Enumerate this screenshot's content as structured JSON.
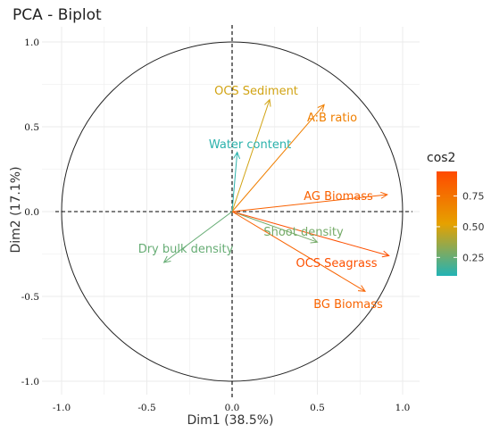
{
  "chart_data": {
    "type": "scatter",
    "subtype": "pca-variable-biplot",
    "title": "PCA - Biplot",
    "xlabel": "Dim1 (38.5%)",
    "ylabel": "Dim2 (17.1%)",
    "xlim": [
      -1.05,
      1.05
    ],
    "ylim": [
      -1.05,
      1.05
    ],
    "x_ticks": [
      -1.0,
      -0.5,
      0.0,
      0.5,
      1.0
    ],
    "x_tick_labels": [
      "-1.0",
      "-0.5",
      "0.0",
      "0.5",
      "1.0"
    ],
    "y_ticks": [
      -1.0,
      -0.5,
      0.0,
      0.5,
      1.0
    ],
    "y_tick_labels": [
      "-1.0",
      "-0.5",
      "0.0",
      "0.5",
      "1.0"
    ],
    "grid": true,
    "unit_circle": true,
    "color_scale": {
      "title": "cos2",
      "stops": [
        "#22b3b5",
        "#e6a100",
        "#ff4a00"
      ],
      "range": [
        0.1,
        0.95
      ],
      "ticks": [
        0.25,
        0.5,
        0.75
      ],
      "tick_labels": [
        "0.25",
        "0.50",
        "0.75"
      ]
    },
    "variables": [
      {
        "name": "OCS Sediment",
        "x": 0.22,
        "y": 0.66,
        "cos2": 0.48
      },
      {
        "name": "A:B ratio",
        "x": 0.54,
        "y": 0.63,
        "cos2": 0.69
      },
      {
        "name": "Water content",
        "x": 0.03,
        "y": 0.35,
        "cos2": 0.12
      },
      {
        "name": "AG Biomass",
        "x": 0.91,
        "y": 0.1,
        "cos2": 0.84
      },
      {
        "name": "Shoot density",
        "x": 0.5,
        "y": -0.18,
        "cos2": 0.28
      },
      {
        "name": "Dry bulk density",
        "x": -0.4,
        "y": -0.3,
        "cos2": 0.25
      },
      {
        "name": "OCS Seagrass",
        "x": 0.92,
        "y": -0.26,
        "cos2": 0.92
      },
      {
        "name": "BG Biomass",
        "x": 0.78,
        "y": -0.47,
        "cos2": 0.83
      }
    ]
  }
}
